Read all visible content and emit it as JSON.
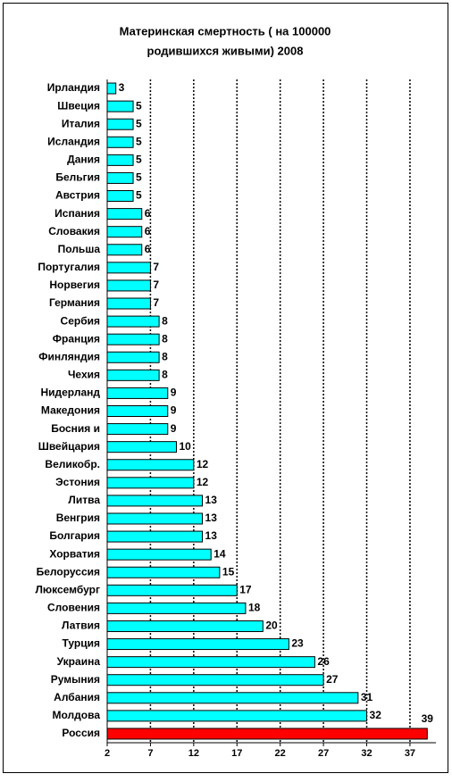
{
  "chart_data": {
    "type": "barh",
    "title": [
      "Материнская смертность ( на 100000",
      "родившихся живыми)  2008"
    ],
    "categories": [
      "Ирландия",
      "Швеция",
      "Италия",
      "Исландия",
      "Дания",
      "Бельгия",
      "Австрия",
      "Испания",
      "Словакия",
      "Польша",
      "Португалия",
      "Норвегия",
      "Германия",
      "Сербия",
      "Франция",
      "Финляндия",
      "Чехия",
      "Нидерланд",
      "Македония",
      "Босния и",
      "Швейцария",
      "Великобр.",
      "Эстония",
      "Литва",
      "Венгрия",
      "Болгария",
      "Хорватия",
      "Белоруссия",
      "Люксембург",
      "Словения",
      "Латвия",
      "Турция",
      "Украина",
      "Румыния",
      "Албания",
      "Молдова",
      "Россия"
    ],
    "values": [
      3,
      5,
      5,
      5,
      5,
      5,
      5,
      6,
      6,
      6,
      7,
      7,
      7,
      8,
      8,
      8,
      8,
      9,
      9,
      9,
      10,
      12,
      12,
      13,
      13,
      13,
      14,
      15,
      17,
      18,
      20,
      23,
      26,
      27,
      31,
      32,
      39
    ],
    "colors": [
      "#00ffff",
      "#00ffff",
      "#00ffff",
      "#00ffff",
      "#00ffff",
      "#00ffff",
      "#00ffff",
      "#00ffff",
      "#00ffff",
      "#00ffff",
      "#00ffff",
      "#00ffff",
      "#00ffff",
      "#00ffff",
      "#00ffff",
      "#00ffff",
      "#00ffff",
      "#00ffff",
      "#00ffff",
      "#00ffff",
      "#00ffff",
      "#00ffff",
      "#00ffff",
      "#00ffff",
      "#00ffff",
      "#00ffff",
      "#00ffff",
      "#00ffff",
      "#00ffff",
      "#00ffff",
      "#00ffff",
      "#00ffff",
      "#00ffff",
      "#00ffff",
      "#00ffff",
      "#00ffff",
      "#ff0000"
    ],
    "xlim": [
      2,
      40
    ],
    "xticks": [
      2,
      7,
      12,
      17,
      22,
      27,
      32,
      37
    ],
    "grid": true
  }
}
